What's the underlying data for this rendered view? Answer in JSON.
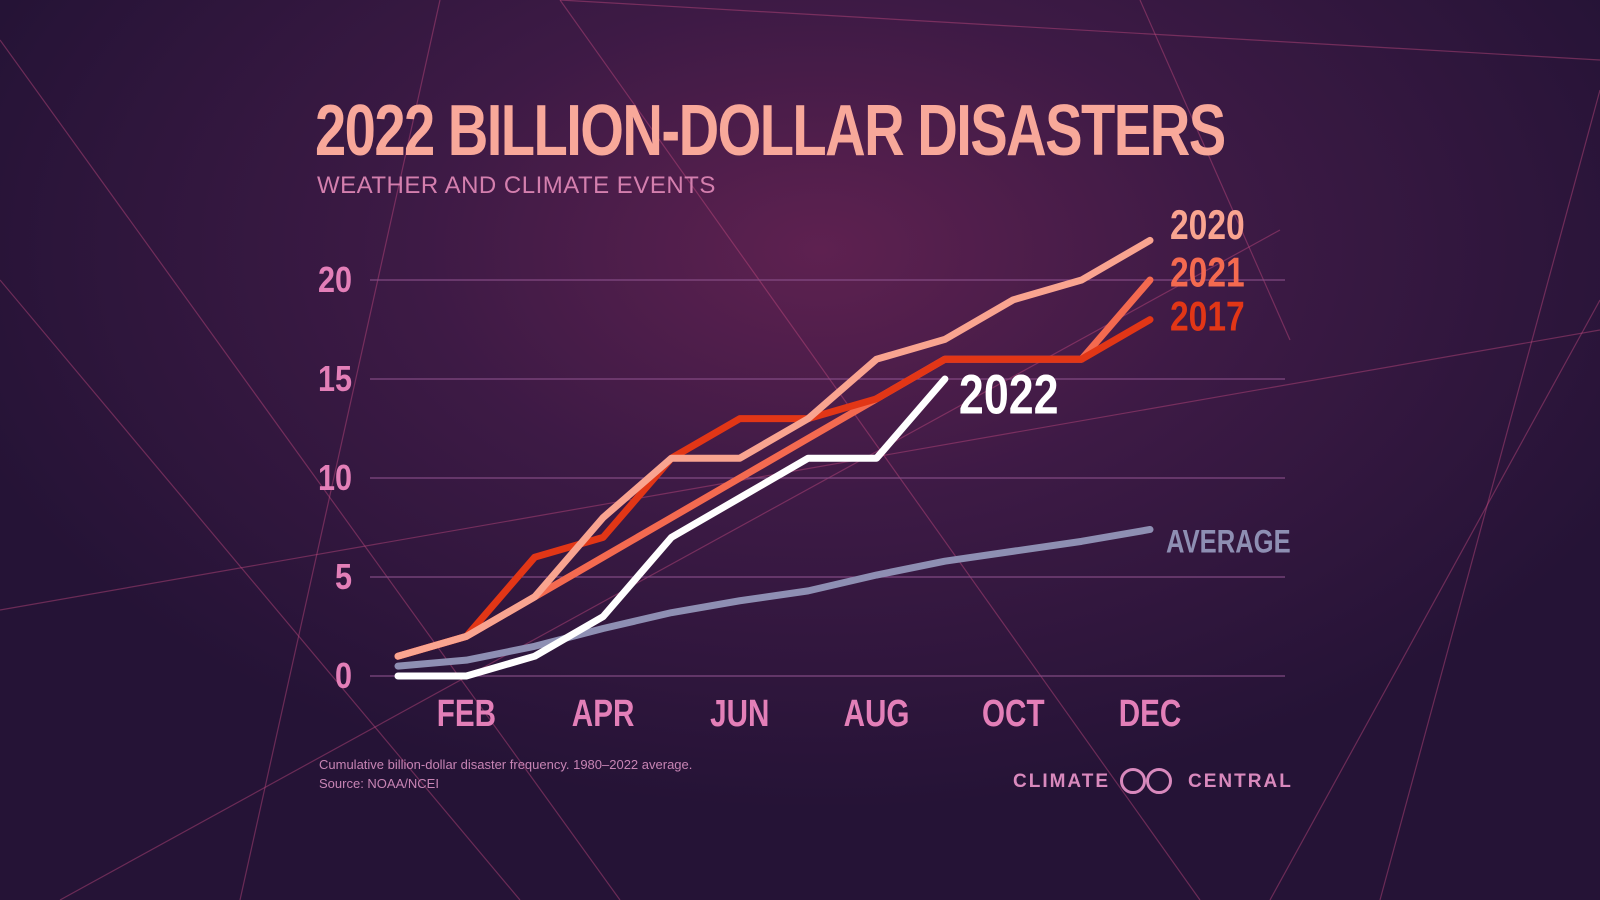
{
  "title": "2022 BILLION-DOLLAR DISASTERS",
  "subtitle": "WEATHER AND CLIMATE EVENTS",
  "footnote": {
    "line1": "Cumulative billion-dollar disaster frequency. 1980–2022 average.",
    "line2": "Source: NOAA/NCEI"
  },
  "logo": {
    "left": "CLIMATE",
    "right": "CENTRAL"
  },
  "colors": {
    "y2020": "#f9a490",
    "y2021": "#f46a50",
    "y2017": "#e23616",
    "y2022": "#ffffff",
    "average": "#8e8fb3",
    "tick": "#e37fb8",
    "grid": "#8a4f8a"
  },
  "chart_data": {
    "type": "line",
    "x": [
      1,
      2,
      3,
      4,
      5,
      6,
      7,
      8,
      9,
      10,
      11,
      12
    ],
    "xticks": [
      2,
      4,
      6,
      8,
      10,
      12
    ],
    "xtick_labels": [
      "FEB",
      "APR",
      "JUN",
      "AUG",
      "OCT",
      "DEC"
    ],
    "yticks": [
      0,
      5,
      10,
      15,
      20
    ],
    "ylim": [
      0,
      22
    ],
    "xlim": [
      1,
      12
    ],
    "grid": true,
    "series": [
      {
        "name": "2020",
        "color_key": "y2020",
        "x": [
          1,
          2,
          3,
          4,
          5,
          6,
          7,
          8,
          9,
          10,
          11,
          12
        ],
        "values": [
          1,
          2,
          4,
          8,
          11,
          11,
          13,
          16,
          17,
          19,
          20,
          22
        ]
      },
      {
        "name": "2021",
        "color_key": "y2021",
        "x": [
          1,
          2,
          3,
          4,
          5,
          6,
          7,
          8,
          9,
          10,
          11,
          12
        ],
        "values": [
          1,
          2,
          4,
          6,
          8,
          10,
          12,
          14,
          16,
          16,
          16,
          20
        ]
      },
      {
        "name": "2017",
        "color_key": "y2017",
        "x": [
          1,
          2,
          3,
          4,
          5,
          6,
          7,
          8,
          9,
          10,
          11,
          12
        ],
        "values": [
          1,
          2,
          6,
          7,
          11,
          13,
          13,
          14,
          16,
          16,
          16,
          18
        ]
      },
      {
        "name": "2022",
        "color_key": "y2022",
        "x": [
          1,
          2,
          3,
          4,
          5,
          6,
          7,
          8,
          9
        ],
        "values": [
          0,
          0,
          1,
          3,
          7,
          9,
          11,
          11,
          15
        ]
      },
      {
        "name": "AVERAGE",
        "color_key": "average",
        "x": [
          1,
          2,
          3,
          4,
          5,
          6,
          7,
          8,
          9,
          10,
          11,
          12
        ],
        "values": [
          0.5,
          0.8,
          1.5,
          2.4,
          3.2,
          3.8,
          4.3,
          5.1,
          5.8,
          6.3,
          6.8,
          7.4
        ]
      }
    ]
  }
}
